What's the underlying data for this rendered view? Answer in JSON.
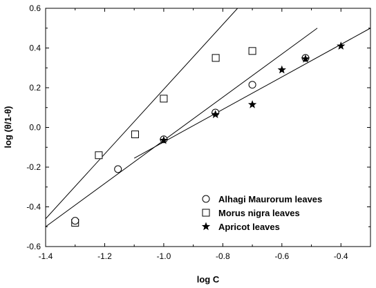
{
  "chart_data": {
    "type": "scatter",
    "title": "",
    "xlabel": "log C",
    "ylabel": "log (θ/1-θ)",
    "xlim": [
      -1.4,
      -0.3
    ],
    "ylim": [
      -0.6,
      0.6
    ],
    "x_ticks": [
      -1.4,
      -1.2,
      -1.0,
      -0.8,
      -0.6,
      -0.4
    ],
    "x_tick_labels": [
      "-1.4",
      "-1.2",
      "-1.0",
      "-0.8",
      "-0.6",
      "-0.4"
    ],
    "y_ticks": [
      -0.6,
      -0.4,
      -0.2,
      0.0,
      0.2,
      0.4,
      0.6
    ],
    "y_tick_labels": [
      "-0.6",
      "-0.4",
      "-0.2",
      "0.0",
      "0.2",
      "0.4",
      "0.6"
    ],
    "grid": false,
    "legend_position": "bottom-right",
    "series": [
      {
        "name": "Alhagi Maurorum leaves",
        "marker": "circle",
        "points": [
          {
            "x": -1.3,
            "y": -0.47
          },
          {
            "x": -1.155,
            "y": -0.21
          },
          {
            "x": -1.0,
            "y": -0.06
          },
          {
            "x": -0.825,
            "y": 0.075
          },
          {
            "x": -0.7,
            "y": 0.215
          },
          {
            "x": -0.52,
            "y": 0.35
          }
        ],
        "fit_line": {
          "x": [
            -1.4,
            -0.48
          ],
          "y": [
            -0.5,
            0.5
          ]
        }
      },
      {
        "name": "Morus nigra leaves",
        "marker": "square",
        "points": [
          {
            "x": -1.3,
            "y": -0.48
          },
          {
            "x": -1.22,
            "y": -0.14
          },
          {
            "x": -1.097,
            "y": -0.035
          },
          {
            "x": -1.0,
            "y": 0.145
          },
          {
            "x": -0.824,
            "y": 0.35
          },
          {
            "x": -0.7,
            "y": 0.385
          }
        ],
        "fit_line": {
          "x": [
            -1.4,
            -0.75
          ],
          "y": [
            -0.46,
            0.6
          ]
        }
      },
      {
        "name": "Apricot leaves",
        "marker": "star",
        "points": [
          {
            "x": -1.0,
            "y": -0.065
          },
          {
            "x": -0.825,
            "y": 0.065
          },
          {
            "x": -0.7,
            "y": 0.115
          },
          {
            "x": -0.6,
            "y": 0.29
          },
          {
            "x": -0.52,
            "y": 0.345
          },
          {
            "x": -0.4,
            "y": 0.41
          }
        ],
        "fit_line": {
          "x": [
            -1.1,
            -0.3
          ],
          "y": [
            -0.155,
            0.5
          ]
        }
      }
    ]
  }
}
